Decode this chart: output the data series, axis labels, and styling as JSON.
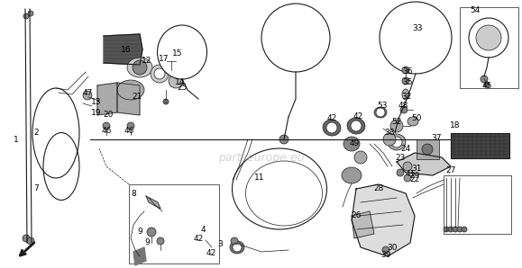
{
  "bg_color": "#ffffff",
  "watermark": "partseurope.eu",
  "image_b64": ""
}
